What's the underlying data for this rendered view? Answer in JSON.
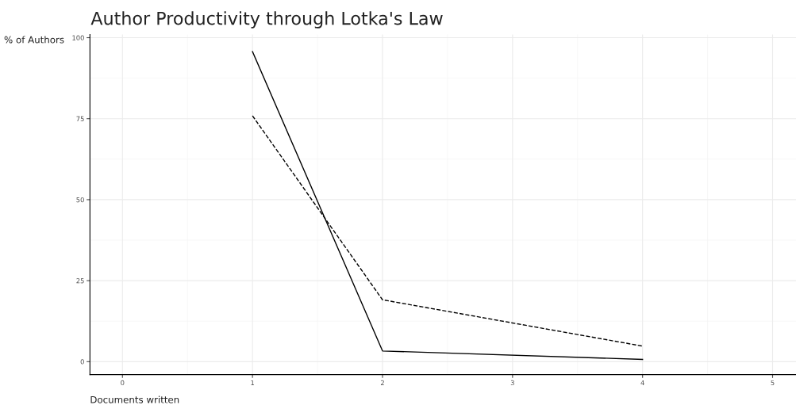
{
  "chart_data": {
    "type": "line",
    "title": "Author Productivity through Lotka's Law",
    "xlabel": "Documents written",
    "ylabel": "% of Authors",
    "series": [
      {
        "color": "#000000",
        "line_style": "solid",
        "x": [
          1,
          2,
          4
        ],
        "values": [
          95.7,
          3.3,
          0.7
        ]
      },
      {
        "color": "#000000",
        "line_style": "dashed",
        "x": [
          1,
          2,
          4
        ],
        "values": [
          75.9,
          19.1,
          4.8
        ]
      }
    ],
    "xlim": [
      -0.25,
      5.18
    ],
    "ylim": [
      -4,
      101
    ],
    "xticks": [
      0,
      1,
      2,
      3,
      4,
      5
    ],
    "yticks": [
      0,
      25,
      50,
      75,
      100
    ],
    "grid": true,
    "marker": "none"
  }
}
